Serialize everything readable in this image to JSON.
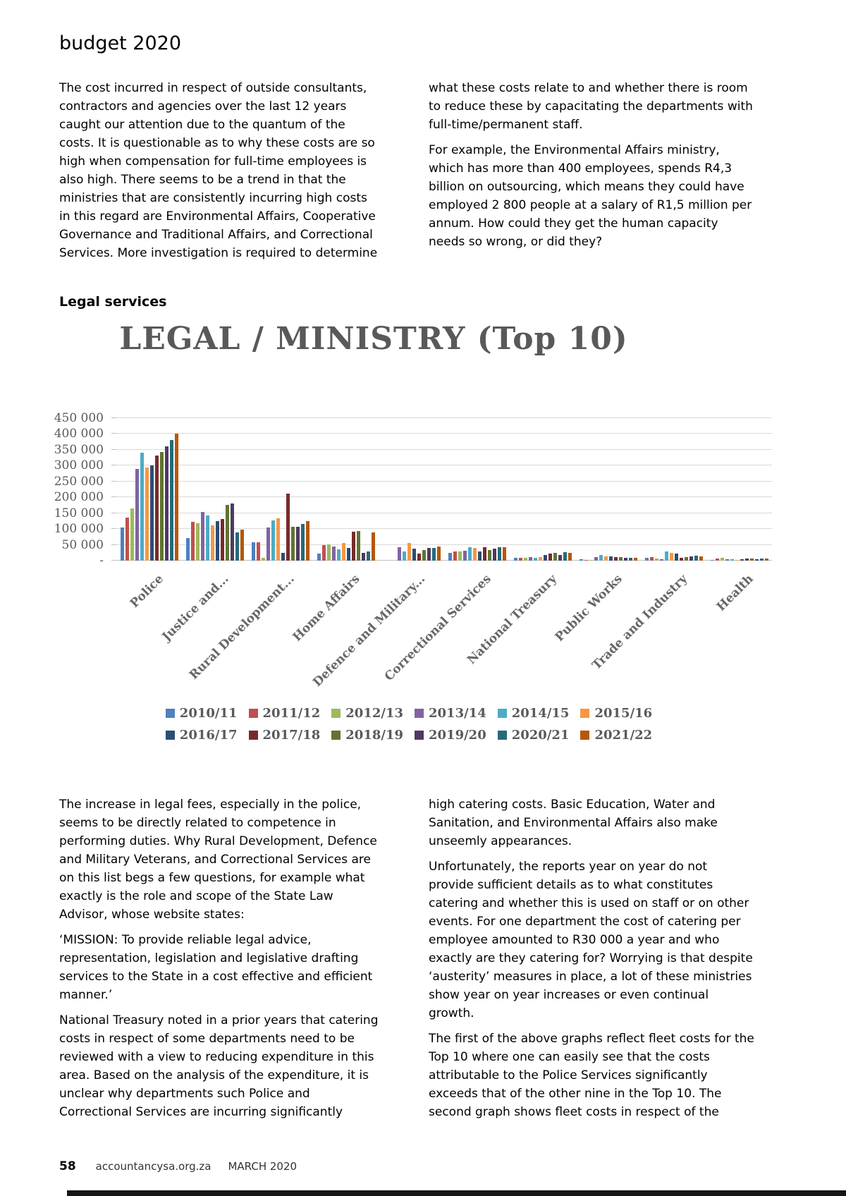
{
  "page": {
    "title": "budget 2020",
    "section_heading": "Legal services",
    "footer": {
      "page_number": "58",
      "site": "accountancysa.org.za",
      "issue": "MARCH 2020"
    }
  },
  "intro": {
    "left": [
      "The cost incurred in respect of outside consultants, contractors and agencies over the last 12 years caught our attention due to the quantum of the costs. It is questionable as to why these costs are so high when compensation for full-time employees is also high. There seems to be a trend in that the ministries that are consistently incurring high costs in this regard are Environmental Affairs, Cooperative Governance and Traditional Affairs, and Correctional Services. More investigation is required to determine"
    ],
    "right": [
      "what these costs relate to and whether there is room to reduce these by capacitating the departments with full-time/permanent staff.",
      "For example, the Environmental Affairs ministry, which has more than 400 employees, spends R4,3 billion on outsourcing, which means they could have employed 2 800 people at a salary of R1,5 million per annum. How could they get the human capacity needs so wrong, or did they?"
    ]
  },
  "body": {
    "left": [
      "The increase in legal fees, especially in the police, seems to be directly related to competence in performing duties. Why Rural Development, Defence and Military Veterans, and Correctional Services are on this list begs a few questions, for example what exactly is the role and scope of the State Law Advisor, whose website states:",
      "‘MISSION: To provide reliable legal advice, representation, legislation and legislative drafting services to the State in a cost effective and efficient manner.’",
      "National Treasury noted in a prior years that catering costs in respect of some departments need to be reviewed with a view to reducing expenditure in this area. Based on the analysis of the expenditure, it is unclear why departments such Police and Correctional Services are incurring significantly"
    ],
    "right": [
      "high catering costs. Basic Education, Water and Sanitation, and Environmental Affairs also make unseemly appearances.",
      "Unfortunately, the reports year on year do not provide sufficient details as to what constitutes catering and whether this is used on staff or on other events. For one department the cost of catering per employee amounted to R30 000 a year and who exactly are they catering for? Worrying is that despite ‘austerity’ measures in place, a lot of these ministries show year on year increases or even continual growth.",
      "The first of the above graphs reflect fleet costs for the Top 10 where one can easily see that the costs attributable to the Police Services significantly exceeds that of the other nine in the Top 10. The second graph shows fleet costs in respect of the"
    ]
  },
  "chart_data": {
    "type": "bar",
    "title": "LEGAL / MINISTRY (Top 10)",
    "categories": [
      "Police",
      "Justice and...",
      "Rural Development...",
      "Home Affairs",
      "Defence and Military...",
      "Correctional Services",
      "National Treasury",
      "Public Works",
      "Trade and Industry",
      "Health"
    ],
    "series": [
      {
        "name": "2010/11",
        "color": "#4F81BD",
        "values": [
          105000,
          72000,
          57000,
          22000,
          0,
          25000,
          8000,
          5000,
          8000,
          3000
        ]
      },
      {
        "name": "2011/12",
        "color": "#C0504D",
        "values": [
          135000,
          122000,
          57000,
          48000,
          0,
          28000,
          10000,
          3000,
          12000,
          7000
        ]
      },
      {
        "name": "2012/13",
        "color": "#9BBB59",
        "values": [
          165000,
          119000,
          9000,
          51000,
          0,
          29000,
          9000,
          2000,
          6000,
          10000
        ]
      },
      {
        "name": "2013/14",
        "color": "#8064A2",
        "values": [
          290000,
          153000,
          104000,
          45000,
          42000,
          31000,
          12000,
          12000,
          5000,
          4000
        ]
      },
      {
        "name": "2014/15",
        "color": "#4BACC6",
        "values": [
          340000,
          142000,
          128000,
          35000,
          28000,
          42000,
          10000,
          17000,
          28000,
          4000
        ]
      },
      {
        "name": "2015/16",
        "color": "#F79646",
        "values": [
          293000,
          112000,
          134000,
          56000,
          56000,
          40000,
          12000,
          14000,
          25000,
          3000
        ]
      },
      {
        "name": "2016/17",
        "color": "#2C4D75",
        "values": [
          300000,
          125000,
          24000,
          40000,
          37000,
          28000,
          18000,
          13000,
          22000,
          5000
        ]
      },
      {
        "name": "2017/18",
        "color": "#772C2A",
        "values": [
          332000,
          131000,
          211000,
          92000,
          22000,
          43000,
          22000,
          11000,
          10000,
          6000
        ]
      },
      {
        "name": "2018/19",
        "color": "#5F7530",
        "values": [
          344000,
          175000,
          106000,
          93000,
          33000,
          33000,
          24000,
          11000,
          12000,
          6000
        ]
      },
      {
        "name": "2019/20",
        "color": "#4D3B62",
        "values": [
          362000,
          181000,
          107000,
          25000,
          40000,
          37000,
          18000,
          9000,
          14000,
          5000
        ]
      },
      {
        "name": "2020/21",
        "color": "#276A7C",
        "values": [
          381000,
          90000,
          115000,
          28000,
          40000,
          43000,
          26000,
          10000,
          16000,
          7000
        ]
      },
      {
        "name": "2021/22",
        "color": "#B65708",
        "values": [
          402000,
          97000,
          125000,
          90000,
          45000,
          43000,
          24000,
          8000,
          13000,
          7000
        ]
      }
    ],
    "ylim": [
      0,
      450000
    ],
    "ytick_values": [
      450000,
      400000,
      350000,
      300000,
      250000,
      200000,
      150000,
      100000,
      50000,
      0
    ],
    "ytick_labels": [
      "450 000",
      "400 000",
      "350 000",
      "300 000",
      "250 000",
      "200 000",
      "150 000",
      "100 000",
      "50 000",
      "-"
    ],
    "grid": true,
    "legend_position": "bottom-two-rows"
  }
}
